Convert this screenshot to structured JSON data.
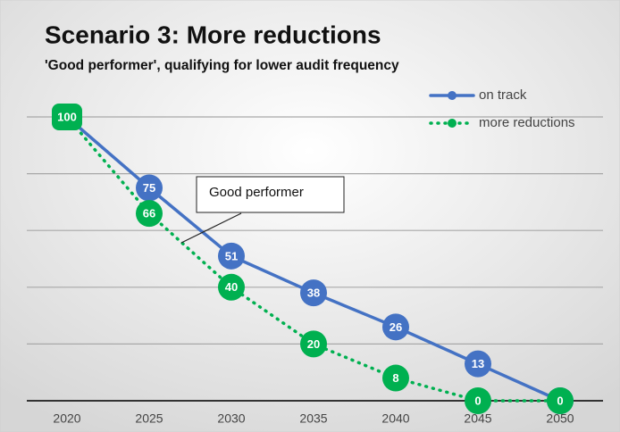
{
  "chart_data": {
    "type": "line",
    "title": "Scenario 3: More reductions",
    "subtitle": "'Good performer', qualifying for lower audit frequency",
    "categories": [
      "2020",
      "2025",
      "2030",
      "2035",
      "2040",
      "2045",
      "2050"
    ],
    "series": [
      {
        "name": "on track",
        "color": "#4472c4",
        "values": [
          100,
          75,
          51,
          38,
          26,
          13,
          0
        ]
      },
      {
        "name": "more reductions",
        "color": "#00b050",
        "values": [
          100,
          66,
          40,
          20,
          8,
          0,
          0
        ]
      }
    ],
    "ylim": [
      0,
      100
    ],
    "yticks": [
      0,
      20,
      40,
      60,
      80,
      100
    ],
    "grid": true,
    "legend": "top-right",
    "annotation": "Good performer"
  }
}
